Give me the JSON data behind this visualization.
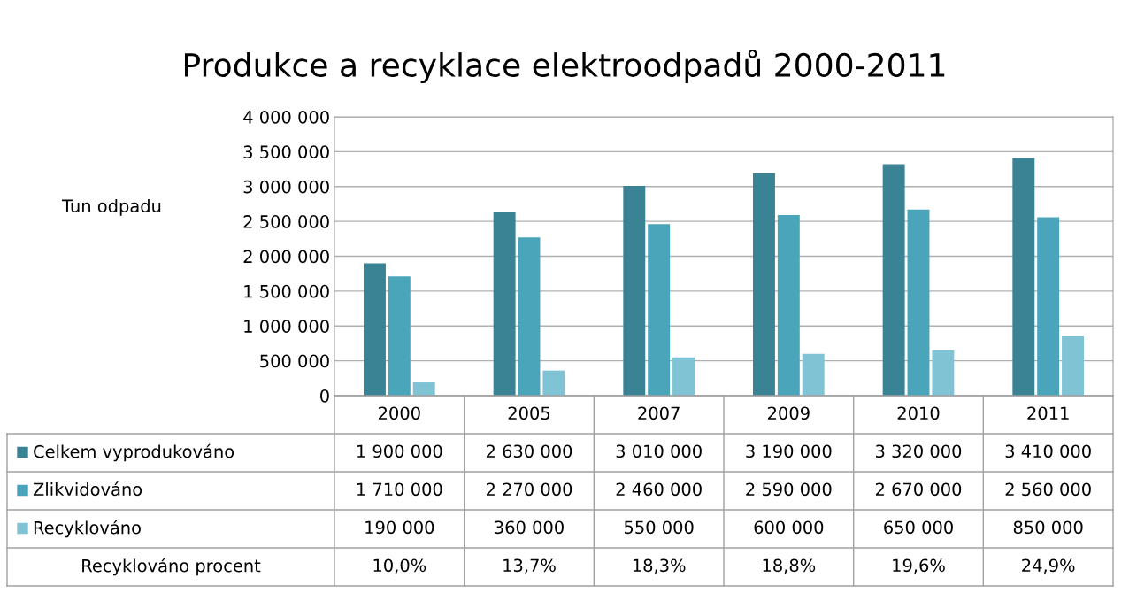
{
  "chart_data": {
    "type": "bar",
    "title": "Produkce a recyklace elektroodpadů 2000-2011",
    "ylabel": "Tun odpadu",
    "categories": [
      "2000",
      "2005",
      "2007",
      "2009",
      "2010",
      "2011"
    ],
    "series": [
      {
        "name": "Celkem vyprodukováno",
        "color": "#3a8394",
        "values": [
          1900000,
          2630000,
          3010000,
          3190000,
          3320000,
          3410000
        ],
        "value_labels": [
          "1 900 000",
          "2 630 000",
          "3 010 000",
          "3 190 000",
          "3 320 000",
          "3 410 000"
        ]
      },
      {
        "name": "Zlikvidováno",
        "color": "#4aa5bb",
        "values": [
          1710000,
          2270000,
          2460000,
          2590000,
          2670000,
          2560000
        ],
        "value_labels": [
          "1 710 000",
          "2 270 000",
          "2 460 000",
          "2 590 000",
          "2 670 000",
          "2 560 000"
        ]
      },
      {
        "name": "Recyklováno",
        "color": "#80c3d4",
        "values": [
          190000,
          360000,
          550000,
          600000,
          650000,
          850000
        ],
        "value_labels": [
          "190 000",
          "360 000",
          "550 000",
          "600 000",
          "650 000",
          "850 000"
        ]
      }
    ],
    "annotations": [
      "Recyklováno procent",
      "10,0%",
      "13,7%",
      "18,3%",
      "18,8%",
      "19,6%",
      "24,9%"
    ],
    "ylim": [
      0,
      4000000
    ],
    "yticks": [
      {
        "value": 0,
        "label": "0"
      },
      {
        "value": 500000,
        "label": "500 000"
      },
      {
        "value": 1000000,
        "label": "1 000 000"
      },
      {
        "value": 1500000,
        "label": "1 500 000"
      },
      {
        "value": 2000000,
        "label": "2 000 000"
      },
      {
        "value": 2500000,
        "label": "2 500 000"
      },
      {
        "value": 3000000,
        "label": "3 000 000"
      },
      {
        "value": 3500000,
        "label": "3 500 000"
      },
      {
        "value": 4000000,
        "label": "4 000 000"
      }
    ],
    "grid": "y",
    "legend": "bottom"
  }
}
